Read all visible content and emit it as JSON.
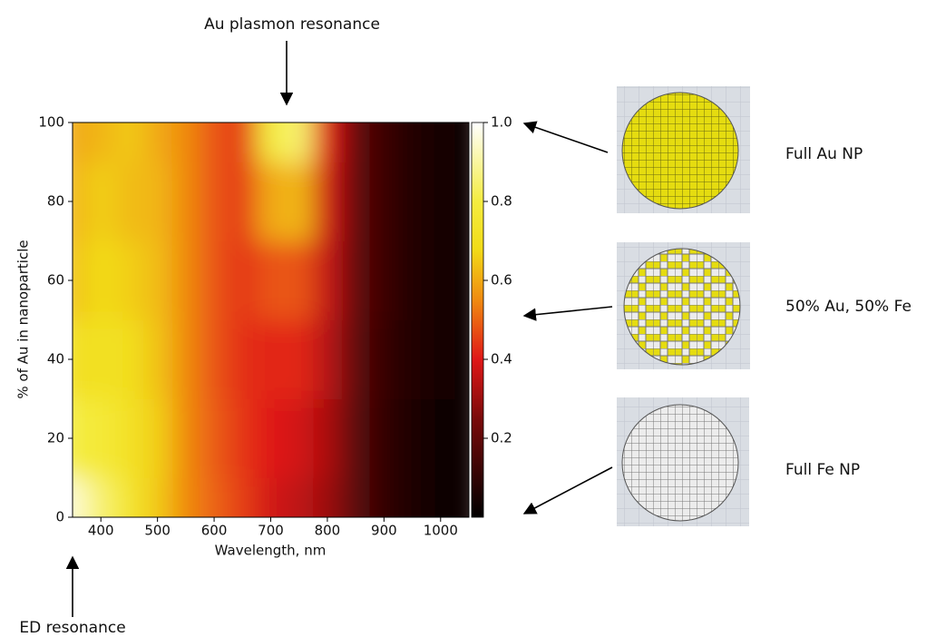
{
  "chart_data": {
    "type": "heatmap",
    "x": [
      350,
      400,
      450,
      500,
      550,
      600,
      650,
      700,
      750,
      800,
      850,
      900,
      950,
      1000,
      1050
    ],
    "y": [
      0,
      20,
      40,
      60,
      80,
      100
    ],
    "z": [
      [
        0.95,
        0.85,
        0.75,
        0.65,
        0.55,
        0.5,
        0.45,
        0.38,
        0.35,
        0.3,
        0.18,
        0.1,
        0.06,
        0.03,
        0.02
      ],
      [
        0.8,
        0.78,
        0.72,
        0.66,
        0.55,
        0.49,
        0.44,
        0.4,
        0.38,
        0.32,
        0.18,
        0.1,
        0.06,
        0.03,
        0.02
      ],
      [
        0.7,
        0.72,
        0.7,
        0.64,
        0.55,
        0.48,
        0.43,
        0.42,
        0.42,
        0.34,
        0.19,
        0.11,
        0.07,
        0.04,
        0.03
      ],
      [
        0.64,
        0.68,
        0.66,
        0.63,
        0.55,
        0.48,
        0.44,
        0.48,
        0.48,
        0.36,
        0.2,
        0.12,
        0.07,
        0.04,
        0.03
      ],
      [
        0.62,
        0.66,
        0.63,
        0.62,
        0.55,
        0.48,
        0.45,
        0.6,
        0.62,
        0.38,
        0.2,
        0.12,
        0.07,
        0.04,
        0.03
      ],
      [
        0.6,
        0.62,
        0.65,
        0.6,
        0.55,
        0.48,
        0.45,
        0.8,
        0.85,
        0.4,
        0.2,
        0.12,
        0.07,
        0.04,
        0.03
      ]
    ],
    "x_label": "Wavelength, nm",
    "y_label": "% of Au in nanoparticle",
    "xlim": [
      350,
      1050
    ],
    "xticks": [
      400,
      500,
      600,
      700,
      800,
      900,
      1000
    ],
    "ylim": [
      0,
      100
    ],
    "yticks": [
      0,
      20,
      40,
      60,
      80,
      100
    ],
    "zlim": [
      0,
      1
    ],
    "colorbar_ticks": [
      0.2,
      0.4,
      0.6,
      0.8,
      {
        "value": 1,
        "label": "1.0"
      }
    ],
    "colormap": [
      {
        "value": 0,
        "color": "#000000"
      },
      {
        "value": 0.25,
        "color": "#7a0a0a"
      },
      {
        "value": 0.4,
        "color": "#e01818"
      },
      {
        "value": 0.55,
        "color": "#f08a10"
      },
      {
        "value": 0.68,
        "color": "#f2dc18"
      },
      {
        "value": 0.8,
        "color": "#f4ec40"
      },
      {
        "value": 1,
        "color": "#ffffff"
      }
    ],
    "annotations": [
      "Au plasmon resonance",
      "ED resonance"
    ],
    "panel_labels": [
      "Full Au NP",
      "50% Au, 50% Fe",
      "Full Fe NP"
    ]
  }
}
